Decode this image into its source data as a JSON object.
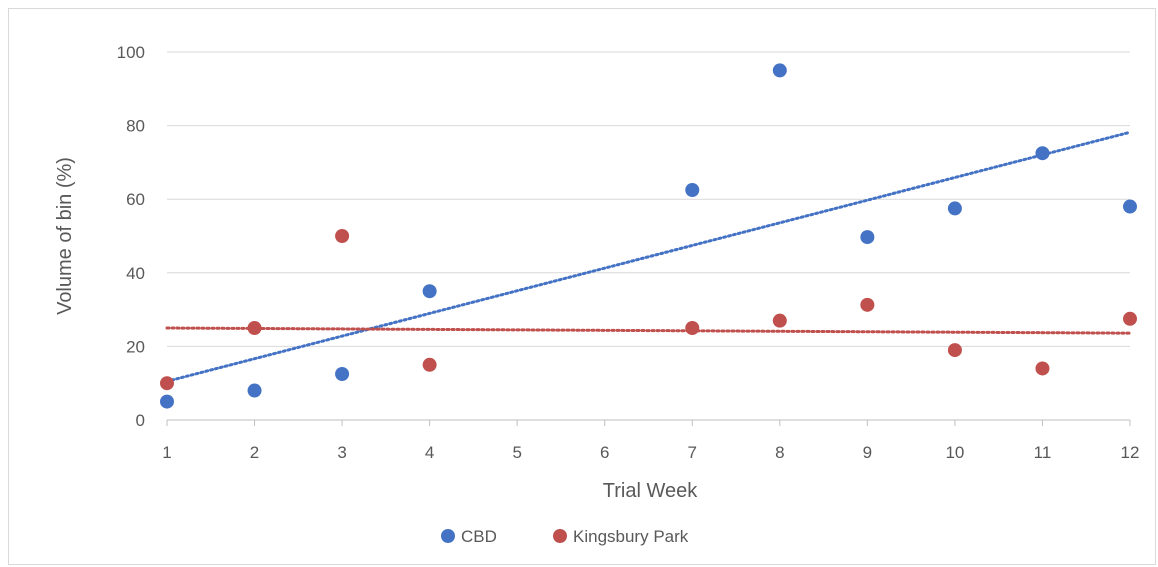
{
  "chart_data": {
    "type": "scatter",
    "title": "",
    "xlabel": "Trial Week",
    "ylabel": "Volume of bin (%)",
    "x_categories": [
      "1",
      "2",
      "3",
      "4",
      "5",
      "6",
      "7",
      "8",
      "9",
      "10",
      "11",
      "12"
    ],
    "ylim": [
      0,
      100
    ],
    "yticks": [
      "0",
      "20",
      "40",
      "60",
      "80",
      "100"
    ],
    "grid": true,
    "legend_position": "bottom",
    "series": [
      {
        "name": "CBD",
        "color": "#4472C4",
        "points": [
          [
            1,
            5
          ],
          [
            2,
            8
          ],
          [
            3,
            12.5
          ],
          [
            4,
            35
          ],
          [
            7,
            62.5
          ],
          [
            8,
            95
          ],
          [
            9,
            49.7
          ],
          [
            10,
            57.5
          ],
          [
            11,
            72.5
          ],
          [
            12,
            58
          ]
        ],
        "trendline": {
          "type": "linear",
          "from": [
            1,
            10.5
          ],
          "to": [
            12,
            78.2
          ]
        }
      },
      {
        "name": "Kingsbury Park",
        "color": "#C0504D",
        "points": [
          [
            1,
            10
          ],
          [
            2,
            25
          ],
          [
            3,
            50
          ],
          [
            4,
            15
          ],
          [
            7,
            25
          ],
          [
            8,
            27
          ],
          [
            9,
            31.3
          ],
          [
            10,
            19
          ],
          [
            11,
            14
          ],
          [
            12,
            27.5
          ]
        ],
        "trendline": {
          "type": "linear",
          "from": [
            1,
            25
          ],
          "to": [
            12,
            23.6
          ]
        }
      }
    ]
  }
}
